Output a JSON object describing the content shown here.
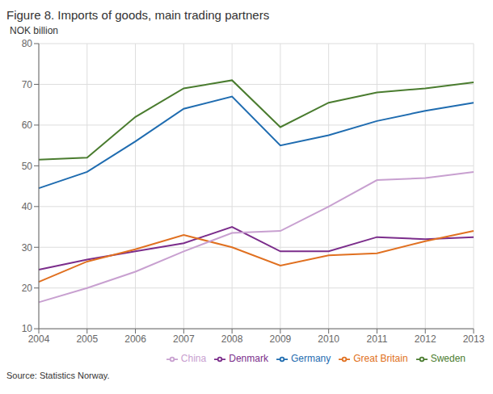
{
  "chart_data": {
    "type": "line",
    "title": "Figure 8. Imports of goods, main trading partners",
    "ylabel": "NOK billion",
    "source": "Source: Statistics Norway.",
    "categories": [
      "2004",
      "2005",
      "2006",
      "2007",
      "2008",
      "2009",
      "2010",
      "2011",
      "2012",
      "2013"
    ],
    "series": [
      {
        "name": "Sweden",
        "color": "#4a7c2f",
        "values": [
          51.5,
          52.0,
          62.0,
          69.0,
          71.0,
          59.5,
          65.5,
          68.0,
          69.0,
          70.5
        ]
      },
      {
        "name": "Germany",
        "color": "#1f6cb0",
        "values": [
          44.5,
          48.5,
          56.0,
          64.0,
          67.0,
          55.0,
          57.5,
          61.0,
          63.5,
          65.5
        ]
      },
      {
        "name": "Denmark",
        "color": "#7b2d8b",
        "values": [
          24.5,
          27.0,
          29.0,
          31.0,
          35.0,
          29.0,
          29.0,
          32.5,
          32.0,
          32.5
        ]
      },
      {
        "name": "Great Britain",
        "color": "#e07020",
        "values": [
          21.5,
          26.5,
          29.5,
          33.0,
          30.0,
          25.5,
          28.0,
          28.5,
          31.5,
          34.0
        ]
      },
      {
        "name": "China",
        "color": "#c8a0d0",
        "values": [
          16.5,
          20.0,
          24.0,
          29.0,
          33.5,
          34.0,
          40.0,
          46.5,
          47.0,
          48.5
        ]
      }
    ],
    "ylim": [
      10,
      80
    ],
    "yticks": [
      10,
      20,
      30,
      40,
      50,
      60,
      70,
      80
    ],
    "grid": true,
    "legend": "lower right"
  }
}
